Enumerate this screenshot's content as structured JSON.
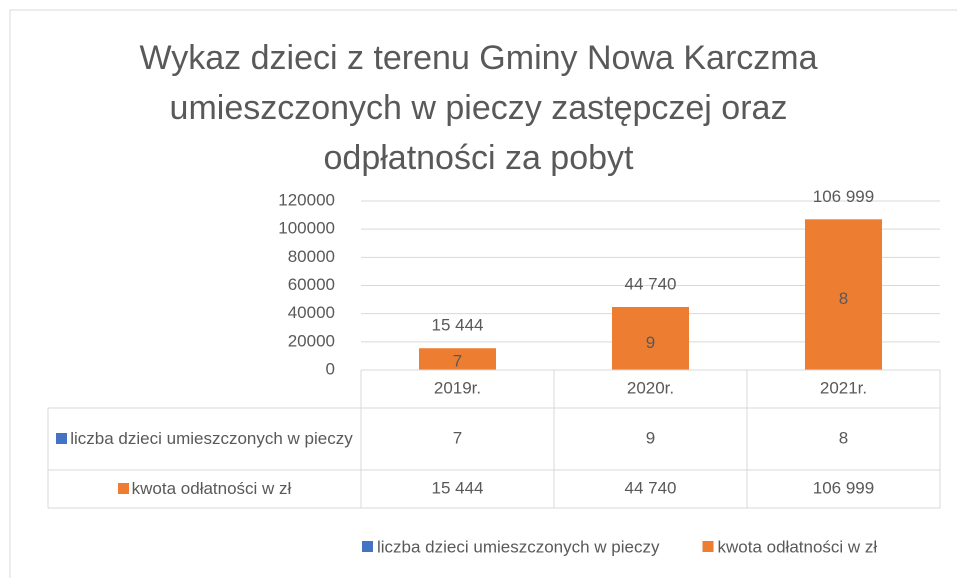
{
  "chart_data": {
    "type": "bar",
    "title": "Wykaz dzieci z terenu Gminy Nowa Karczma\numieszczonych w pieczy zastępczej oraz\nodpłatności za pobyt",
    "categories": [
      "2019r.",
      "2020r.",
      "2021r."
    ],
    "series": [
      {
        "name": "liczba dzieci umieszczonych w pieczy",
        "color": "#4472c4",
        "values": [
          7,
          9,
          8
        ]
      },
      {
        "name": "kwota odłatności w zł",
        "color": "#ed7d31",
        "values": [
          15444,
          44740,
          106999
        ],
        "value_labels": [
          "15 444",
          "44 740",
          "106 999"
        ]
      }
    ],
    "ylim": [
      0,
      120000
    ],
    "yticks": [
      0,
      20000,
      40000,
      60000,
      80000,
      100000,
      120000
    ],
    "grid": true,
    "stacked": true,
    "data_table": true,
    "legend": "bottom"
  }
}
